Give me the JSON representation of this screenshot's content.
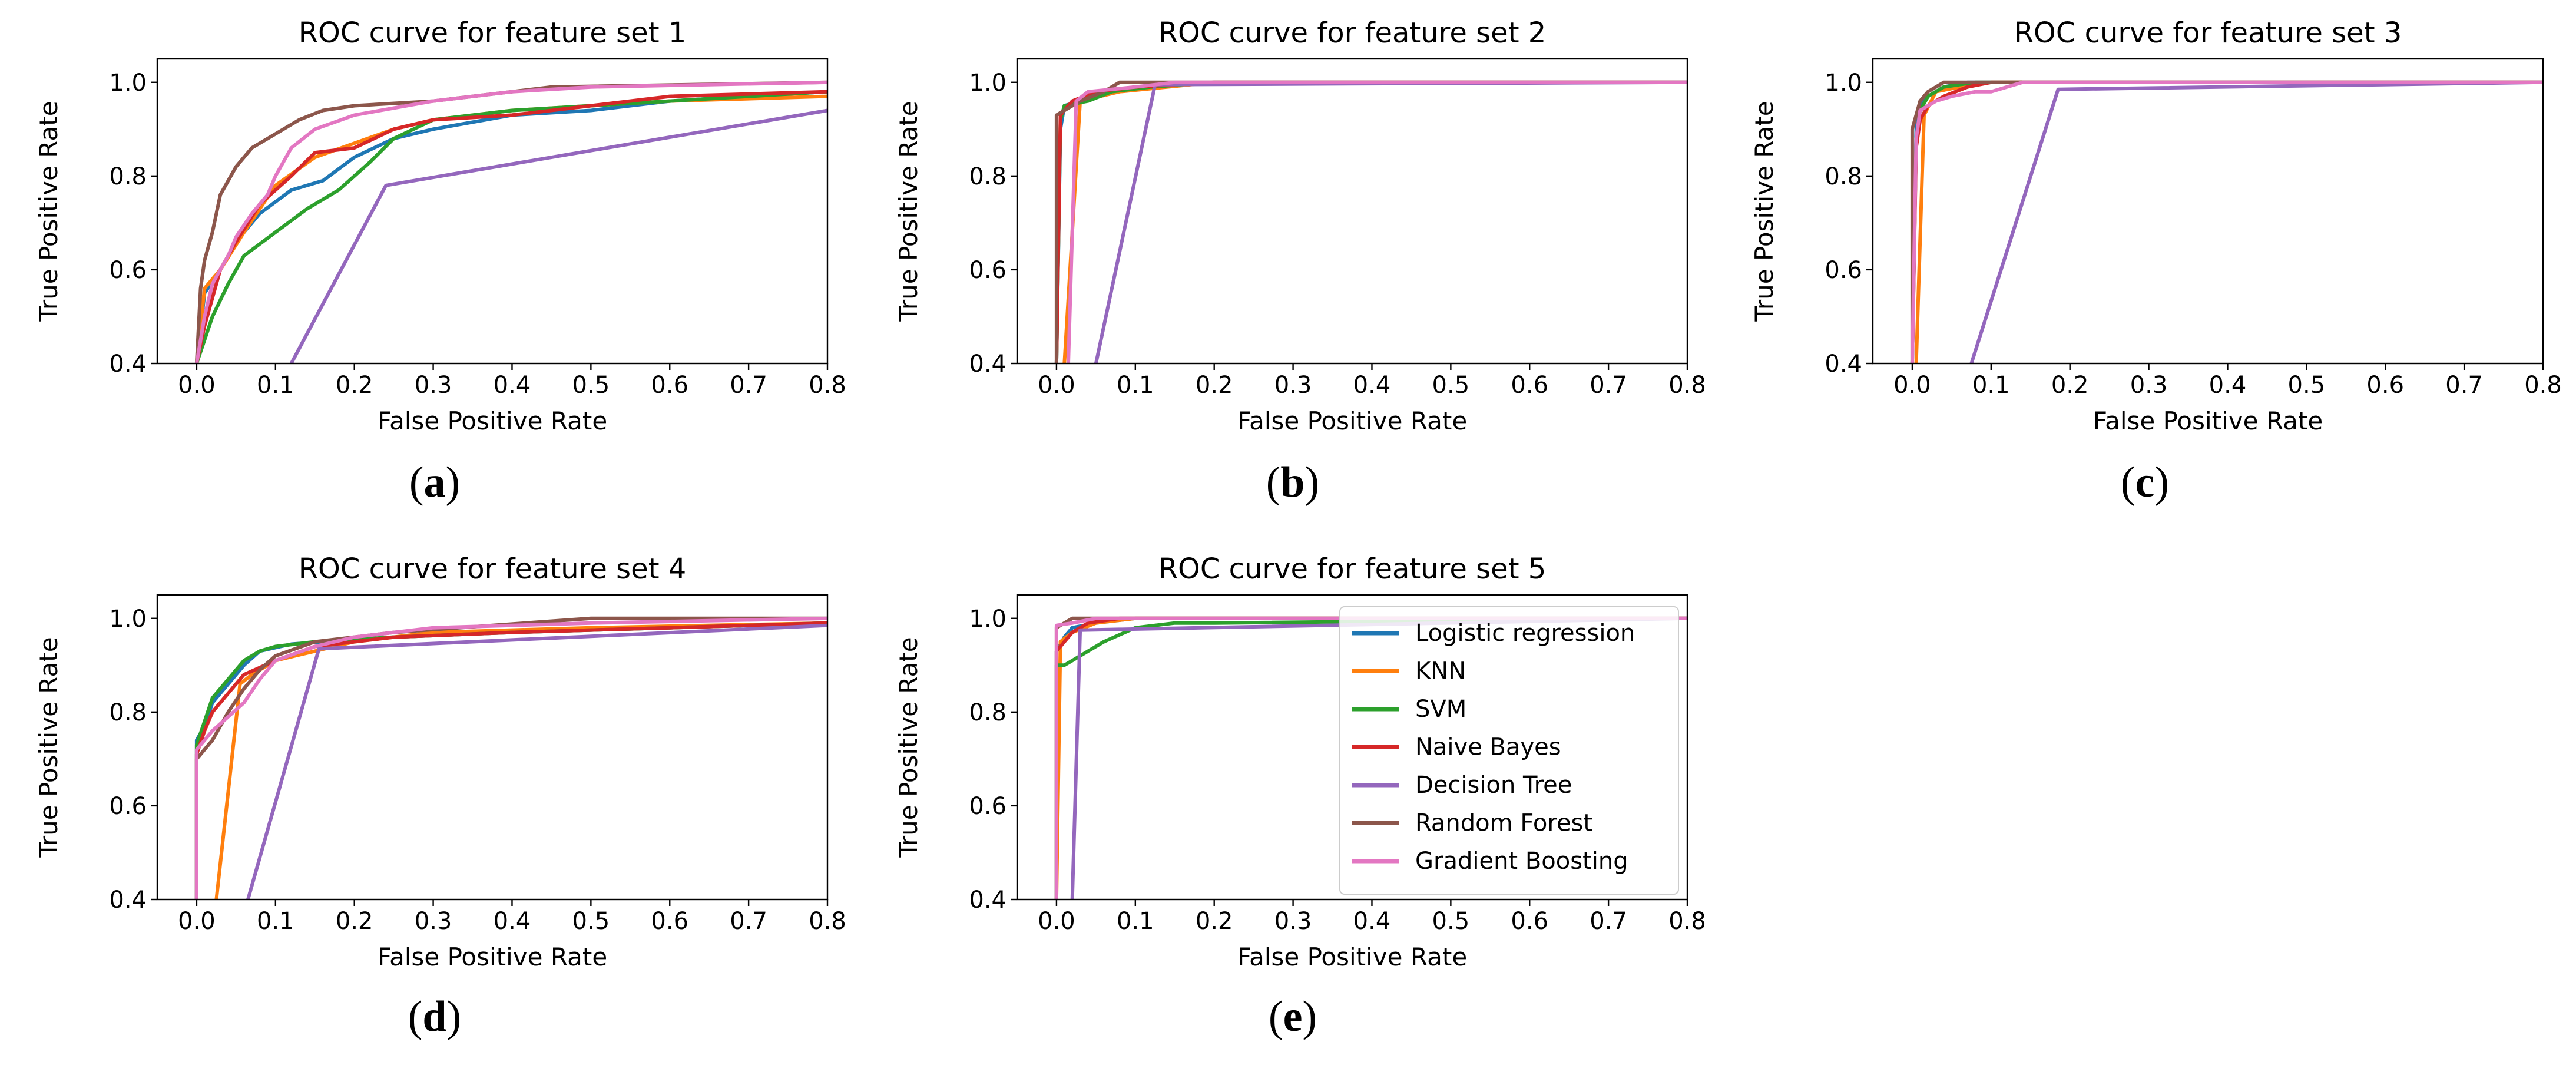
{
  "figure": {
    "panels": [
      {
        "id": "a",
        "caption_letter": "a"
      },
      {
        "id": "b",
        "caption_letter": "b"
      },
      {
        "id": "c",
        "caption_letter": "c"
      },
      {
        "id": "d",
        "caption_letter": "d"
      },
      {
        "id": "e",
        "caption_letter": "e"
      }
    ]
  },
  "colors": {
    "Logistic regression": "#1f77b4",
    "KNN": "#ff7f0e",
    "SVM": "#2ca02c",
    "Naive Bayes": "#d62728",
    "Decision Tree": "#9467bd",
    "Random Forest": "#8c564b",
    "Gradient Boosting": "#e377c2"
  },
  "chart_data": [
    {
      "id": "a",
      "type": "line",
      "title": "ROC curve for feature set 1",
      "xlabel": "False Positive Rate",
      "ylabel": "True Positive Rate",
      "xlim": [
        -0.05,
        0.8
      ],
      "ylim": [
        0.4,
        1.05
      ],
      "xticks": [
        "0.0",
        "0.1",
        "0.2",
        "0.3",
        "0.4",
        "0.5",
        "0.6",
        "0.7",
        "0.8"
      ],
      "yticks": [
        "0.4",
        "0.6",
        "0.8",
        "1.0"
      ],
      "legend": false,
      "series": [
        {
          "name": "Logistic regression",
          "x": [
            0,
            0.01,
            0.03,
            0.05,
            0.08,
            0.12,
            0.16,
            0.2,
            0.25,
            0.3,
            0.4,
            0.5,
            0.6,
            0.8
          ],
          "y": [
            0.4,
            0.55,
            0.6,
            0.66,
            0.72,
            0.77,
            0.79,
            0.84,
            0.88,
            0.9,
            0.93,
            0.94,
            0.96,
            0.98
          ]
        },
        {
          "name": "KNN",
          "x": [
            0,
            0.01,
            0.03,
            0.06,
            0.1,
            0.15,
            0.2,
            0.25,
            0.3,
            0.4,
            0.5,
            0.6,
            0.8
          ],
          "y": [
            0.4,
            0.56,
            0.6,
            0.68,
            0.78,
            0.84,
            0.87,
            0.9,
            0.92,
            0.94,
            0.95,
            0.96,
            0.97
          ]
        },
        {
          "name": "SVM",
          "x": [
            0,
            0.02,
            0.04,
            0.06,
            0.1,
            0.14,
            0.18,
            0.22,
            0.25,
            0.3,
            0.4,
            0.5,
            0.6,
            0.8
          ],
          "y": [
            0.4,
            0.5,
            0.57,
            0.63,
            0.68,
            0.73,
            0.77,
            0.83,
            0.88,
            0.92,
            0.94,
            0.95,
            0.96,
            0.98
          ]
        },
        {
          "name": "Naive Bayes",
          "x": [
            0,
            0.01,
            0.03,
            0.05,
            0.08,
            0.12,
            0.15,
            0.2,
            0.25,
            0.3,
            0.4,
            0.5,
            0.6,
            0.8
          ],
          "y": [
            0.4,
            0.48,
            0.6,
            0.66,
            0.74,
            0.8,
            0.85,
            0.86,
            0.9,
            0.92,
            0.93,
            0.95,
            0.97,
            0.98
          ]
        },
        {
          "name": "Decision Tree",
          "x": [
            0.12,
            0.24,
            0.8
          ],
          "y": [
            0.4,
            0.78,
            0.94
          ]
        },
        {
          "name": "Random Forest",
          "x": [
            0,
            0.005,
            0.01,
            0.02,
            0.03,
            0.05,
            0.07,
            0.1,
            0.13,
            0.16,
            0.2,
            0.3,
            0.45,
            0.8
          ],
          "y": [
            0.4,
            0.56,
            0.62,
            0.68,
            0.76,
            0.82,
            0.86,
            0.89,
            0.92,
            0.94,
            0.95,
            0.96,
            0.99,
            1.0
          ]
        },
        {
          "name": "Gradient Boosting",
          "x": [
            0,
            0.01,
            0.02,
            0.04,
            0.05,
            0.07,
            0.09,
            0.1,
            0.12,
            0.15,
            0.2,
            0.3,
            0.4,
            0.5,
            0.8
          ],
          "y": [
            0.4,
            0.5,
            0.57,
            0.63,
            0.67,
            0.72,
            0.76,
            0.8,
            0.86,
            0.9,
            0.93,
            0.96,
            0.98,
            0.99,
            1.0
          ]
        }
      ]
    },
    {
      "id": "b",
      "type": "line",
      "title": "ROC curve for feature set 2",
      "xlabel": "False Positive Rate",
      "ylabel": "True Positive Rate",
      "xlim": [
        -0.05,
        0.8
      ],
      "ylim": [
        0.4,
        1.05
      ],
      "xticks": [
        "0.0",
        "0.1",
        "0.2",
        "0.3",
        "0.4",
        "0.5",
        "0.6",
        "0.7",
        "0.8"
      ],
      "yticks": [
        "0.4",
        "0.6",
        "0.8",
        "1.0"
      ],
      "legend": false,
      "series": [
        {
          "name": "Logistic regression",
          "x": [
            0.0,
            0.005,
            0.01,
            0.03,
            0.06,
            0.1,
            0.2,
            0.8
          ],
          "y": [
            0.4,
            0.9,
            0.95,
            0.96,
            0.98,
            0.99,
            1.0,
            1.0
          ]
        },
        {
          "name": "KNN",
          "x": [
            0.01,
            0.03,
            0.08,
            0.2,
            0.8
          ],
          "y": [
            0.4,
            0.96,
            0.98,
            1.0,
            1.0
          ]
        },
        {
          "name": "SVM",
          "x": [
            0.0,
            0.005,
            0.01,
            0.04,
            0.07,
            0.12,
            0.2,
            0.8
          ],
          "y": [
            0.4,
            0.92,
            0.95,
            0.96,
            0.98,
            0.99,
            1.0,
            1.0
          ]
        },
        {
          "name": "Naive Bayes",
          "x": [
            0.0,
            0.005,
            0.02,
            0.05,
            0.1,
            0.2,
            0.8
          ],
          "y": [
            0.4,
            0.93,
            0.96,
            0.98,
            0.99,
            1.0,
            1.0
          ]
        },
        {
          "name": "Decision Tree",
          "x": [
            0.05,
            0.125,
            0.8
          ],
          "y": [
            0.4,
            0.995,
            1.0
          ]
        },
        {
          "name": "Random Forest",
          "x": [
            0.0,
            0.0,
            0.02,
            0.03,
            0.06,
            0.08,
            0.8
          ],
          "y": [
            0.4,
            0.93,
            0.95,
            0.96,
            0.98,
            1.0,
            1.0
          ]
        },
        {
          "name": "Gradient Boosting",
          "x": [
            0.015,
            0.025,
            0.04,
            0.07,
            0.1,
            0.15,
            0.8
          ],
          "y": [
            0.4,
            0.96,
            0.98,
            0.985,
            0.99,
            1.0,
            1.0
          ]
        }
      ]
    },
    {
      "id": "c",
      "type": "line",
      "title": "ROC curve for feature set 3",
      "xlabel": "False Positive Rate",
      "ylabel": "True Positive Rate",
      "xlim": [
        -0.05,
        0.8
      ],
      "ylim": [
        0.4,
        1.05
      ],
      "xticks": [
        "0.0",
        "0.1",
        "0.2",
        "0.3",
        "0.4",
        "0.5",
        "0.6",
        "0.7",
        "0.8"
      ],
      "yticks": [
        "0.4",
        "0.6",
        "0.8",
        "1.0"
      ],
      "legend": false,
      "series": [
        {
          "name": "Logistic regression",
          "x": [
            0.0,
            0.005,
            0.01,
            0.02,
            0.04,
            0.07,
            0.1,
            0.8
          ],
          "y": [
            0.4,
            0.9,
            0.95,
            0.97,
            0.99,
            1.0,
            1.0,
            1.0
          ]
        },
        {
          "name": "KNN",
          "x": [
            0.005,
            0.015,
            0.03,
            0.06,
            0.1,
            0.8
          ],
          "y": [
            0.4,
            0.93,
            0.98,
            0.99,
            1.0,
            1.0
          ]
        },
        {
          "name": "SVM",
          "x": [
            0.0,
            0.005,
            0.01,
            0.02,
            0.04,
            0.08,
            0.8
          ],
          "y": [
            0.4,
            0.88,
            0.94,
            0.97,
            0.99,
            1.0,
            1.0
          ]
        },
        {
          "name": "Naive Bayes",
          "x": [
            0.0,
            0.005,
            0.01,
            0.02,
            0.04,
            0.07,
            0.1,
            0.8
          ],
          "y": [
            0.4,
            0.86,
            0.92,
            0.95,
            0.97,
            0.99,
            1.0,
            1.0
          ]
        },
        {
          "name": "Decision Tree",
          "x": [
            0.075,
            0.185,
            0.8
          ],
          "y": [
            0.4,
            0.985,
            1.0
          ]
        },
        {
          "name": "Random Forest",
          "x": [
            0.0,
            0.0,
            0.01,
            0.02,
            0.04,
            0.08,
            0.8
          ],
          "y": [
            0.4,
            0.9,
            0.96,
            0.98,
            1.0,
            1.0,
            1.0
          ]
        },
        {
          "name": "Gradient Boosting",
          "x": [
            0.0,
            0.005,
            0.01,
            0.03,
            0.05,
            0.08,
            0.1,
            0.12,
            0.14,
            0.8
          ],
          "y": [
            0.4,
            0.88,
            0.94,
            0.96,
            0.97,
            0.98,
            0.98,
            0.99,
            1.0,
            1.0
          ]
        }
      ]
    },
    {
      "id": "d",
      "type": "line",
      "title": "ROC curve for feature set 4",
      "xlabel": "False Positive Rate",
      "ylabel": "True Positive Rate",
      "xlim": [
        -0.05,
        0.8
      ],
      "ylim": [
        0.4,
        1.05
      ],
      "xticks": [
        "0.0",
        "0.1",
        "0.2",
        "0.3",
        "0.4",
        "0.5",
        "0.6",
        "0.7",
        "0.8"
      ],
      "yticks": [
        "0.4",
        "0.6",
        "0.8",
        "1.0"
      ],
      "legend": false,
      "series": [
        {
          "name": "Logistic regression",
          "x": [
            0.0,
            0.0,
            0.01,
            0.02,
            0.04,
            0.06,
            0.08,
            0.12,
            0.16,
            0.25,
            0.4,
            0.6,
            0.8
          ],
          "y": [
            0.4,
            0.74,
            0.77,
            0.82,
            0.86,
            0.9,
            0.93,
            0.945,
            0.95,
            0.96,
            0.97,
            0.98,
            0.99
          ]
        },
        {
          "name": "KNN",
          "x": [
            0.025,
            0.055,
            0.07,
            0.1,
            0.15,
            0.2,
            0.3,
            0.5,
            0.8
          ],
          "y": [
            0.4,
            0.86,
            0.88,
            0.91,
            0.93,
            0.95,
            0.97,
            0.98,
            0.99
          ]
        },
        {
          "name": "SVM",
          "x": [
            0.0,
            0.0,
            0.01,
            0.02,
            0.04,
            0.06,
            0.08,
            0.1,
            0.15,
            0.25,
            0.4,
            0.6,
            0.8
          ],
          "y": [
            0.4,
            0.73,
            0.78,
            0.83,
            0.87,
            0.91,
            0.93,
            0.94,
            0.95,
            0.96,
            0.97,
            0.98,
            0.99
          ]
        },
        {
          "name": "Naive Bayes",
          "x": [
            0.0,
            0.0,
            0.01,
            0.02,
            0.04,
            0.06,
            0.1,
            0.15,
            0.25,
            0.4,
            0.6,
            0.8
          ],
          "y": [
            0.4,
            0.71,
            0.76,
            0.8,
            0.84,
            0.88,
            0.91,
            0.94,
            0.96,
            0.97,
            0.98,
            0.99
          ]
        },
        {
          "name": "Decision Tree",
          "x": [
            0.065,
            0.155,
            0.8
          ],
          "y": [
            0.4,
            0.935,
            0.985
          ]
        },
        {
          "name": "Random Forest",
          "x": [
            0.0,
            0.0,
            0.02,
            0.04,
            0.06,
            0.08,
            0.1,
            0.15,
            0.25,
            0.5,
            0.8
          ],
          "y": [
            0.4,
            0.7,
            0.74,
            0.8,
            0.85,
            0.89,
            0.92,
            0.95,
            0.97,
            1.0,
            1.0
          ]
        },
        {
          "name": "Gradient Boosting",
          "x": [
            0.0,
            0.0,
            0.02,
            0.04,
            0.06,
            0.08,
            0.1,
            0.15,
            0.2,
            0.3,
            0.5,
            0.8
          ],
          "y": [
            0.4,
            0.72,
            0.76,
            0.79,
            0.82,
            0.87,
            0.91,
            0.94,
            0.96,
            0.98,
            0.99,
            1.0
          ]
        }
      ]
    },
    {
      "id": "e",
      "type": "line",
      "title": "ROC curve for feature set 5",
      "xlabel": "False Positive Rate",
      "ylabel": "True Positive Rate",
      "xlim": [
        -0.05,
        0.8
      ],
      "ylim": [
        0.4,
        1.05
      ],
      "xticks": [
        "0.0",
        "0.1",
        "0.2",
        "0.3",
        "0.4",
        "0.5",
        "0.6",
        "0.7",
        "0.8"
      ],
      "yticks": [
        "0.4",
        "0.6",
        "0.8",
        "1.0"
      ],
      "legend": true,
      "legend_position": "top-right",
      "series": [
        {
          "name": "Logistic regression",
          "x": [
            0.0,
            0.0,
            0.01,
            0.02,
            0.05,
            0.1,
            0.8
          ],
          "y": [
            0.4,
            0.93,
            0.96,
            0.98,
            0.99,
            1.0,
            1.0
          ]
        },
        {
          "name": "KNN",
          "x": [
            0.0,
            0.005,
            0.02,
            0.05,
            0.1,
            0.8
          ],
          "y": [
            0.4,
            0.95,
            0.97,
            0.99,
            1.0,
            1.0
          ]
        },
        {
          "name": "SVM",
          "x": [
            0.0,
            0.0,
            0.01,
            0.02,
            0.04,
            0.06,
            0.1,
            0.15,
            0.2,
            0.8
          ],
          "y": [
            0.4,
            0.9,
            0.9,
            0.91,
            0.93,
            0.95,
            0.98,
            0.99,
            0.99,
            1.0
          ]
        },
        {
          "name": "Naive Bayes",
          "x": [
            0.0,
            0.0,
            0.01,
            0.02,
            0.04,
            0.08,
            0.8
          ],
          "y": [
            0.4,
            0.93,
            0.95,
            0.97,
            0.99,
            1.0,
            1.0
          ]
        },
        {
          "name": "Decision Tree",
          "x": [
            0.02,
            0.03,
            0.8
          ],
          "y": [
            0.4,
            0.975,
            1.0
          ]
        },
        {
          "name": "Random Forest",
          "x": [
            0.0,
            0.0,
            0.01,
            0.02,
            0.8
          ],
          "y": [
            0.4,
            0.98,
            0.99,
            1.0,
            1.0
          ]
        },
        {
          "name": "Gradient Boosting",
          "x": [
            0.0,
            0.0,
            0.02,
            0.05,
            0.8
          ],
          "y": [
            0.4,
            0.985,
            0.99,
            1.0,
            1.0
          ]
        }
      ]
    }
  ]
}
